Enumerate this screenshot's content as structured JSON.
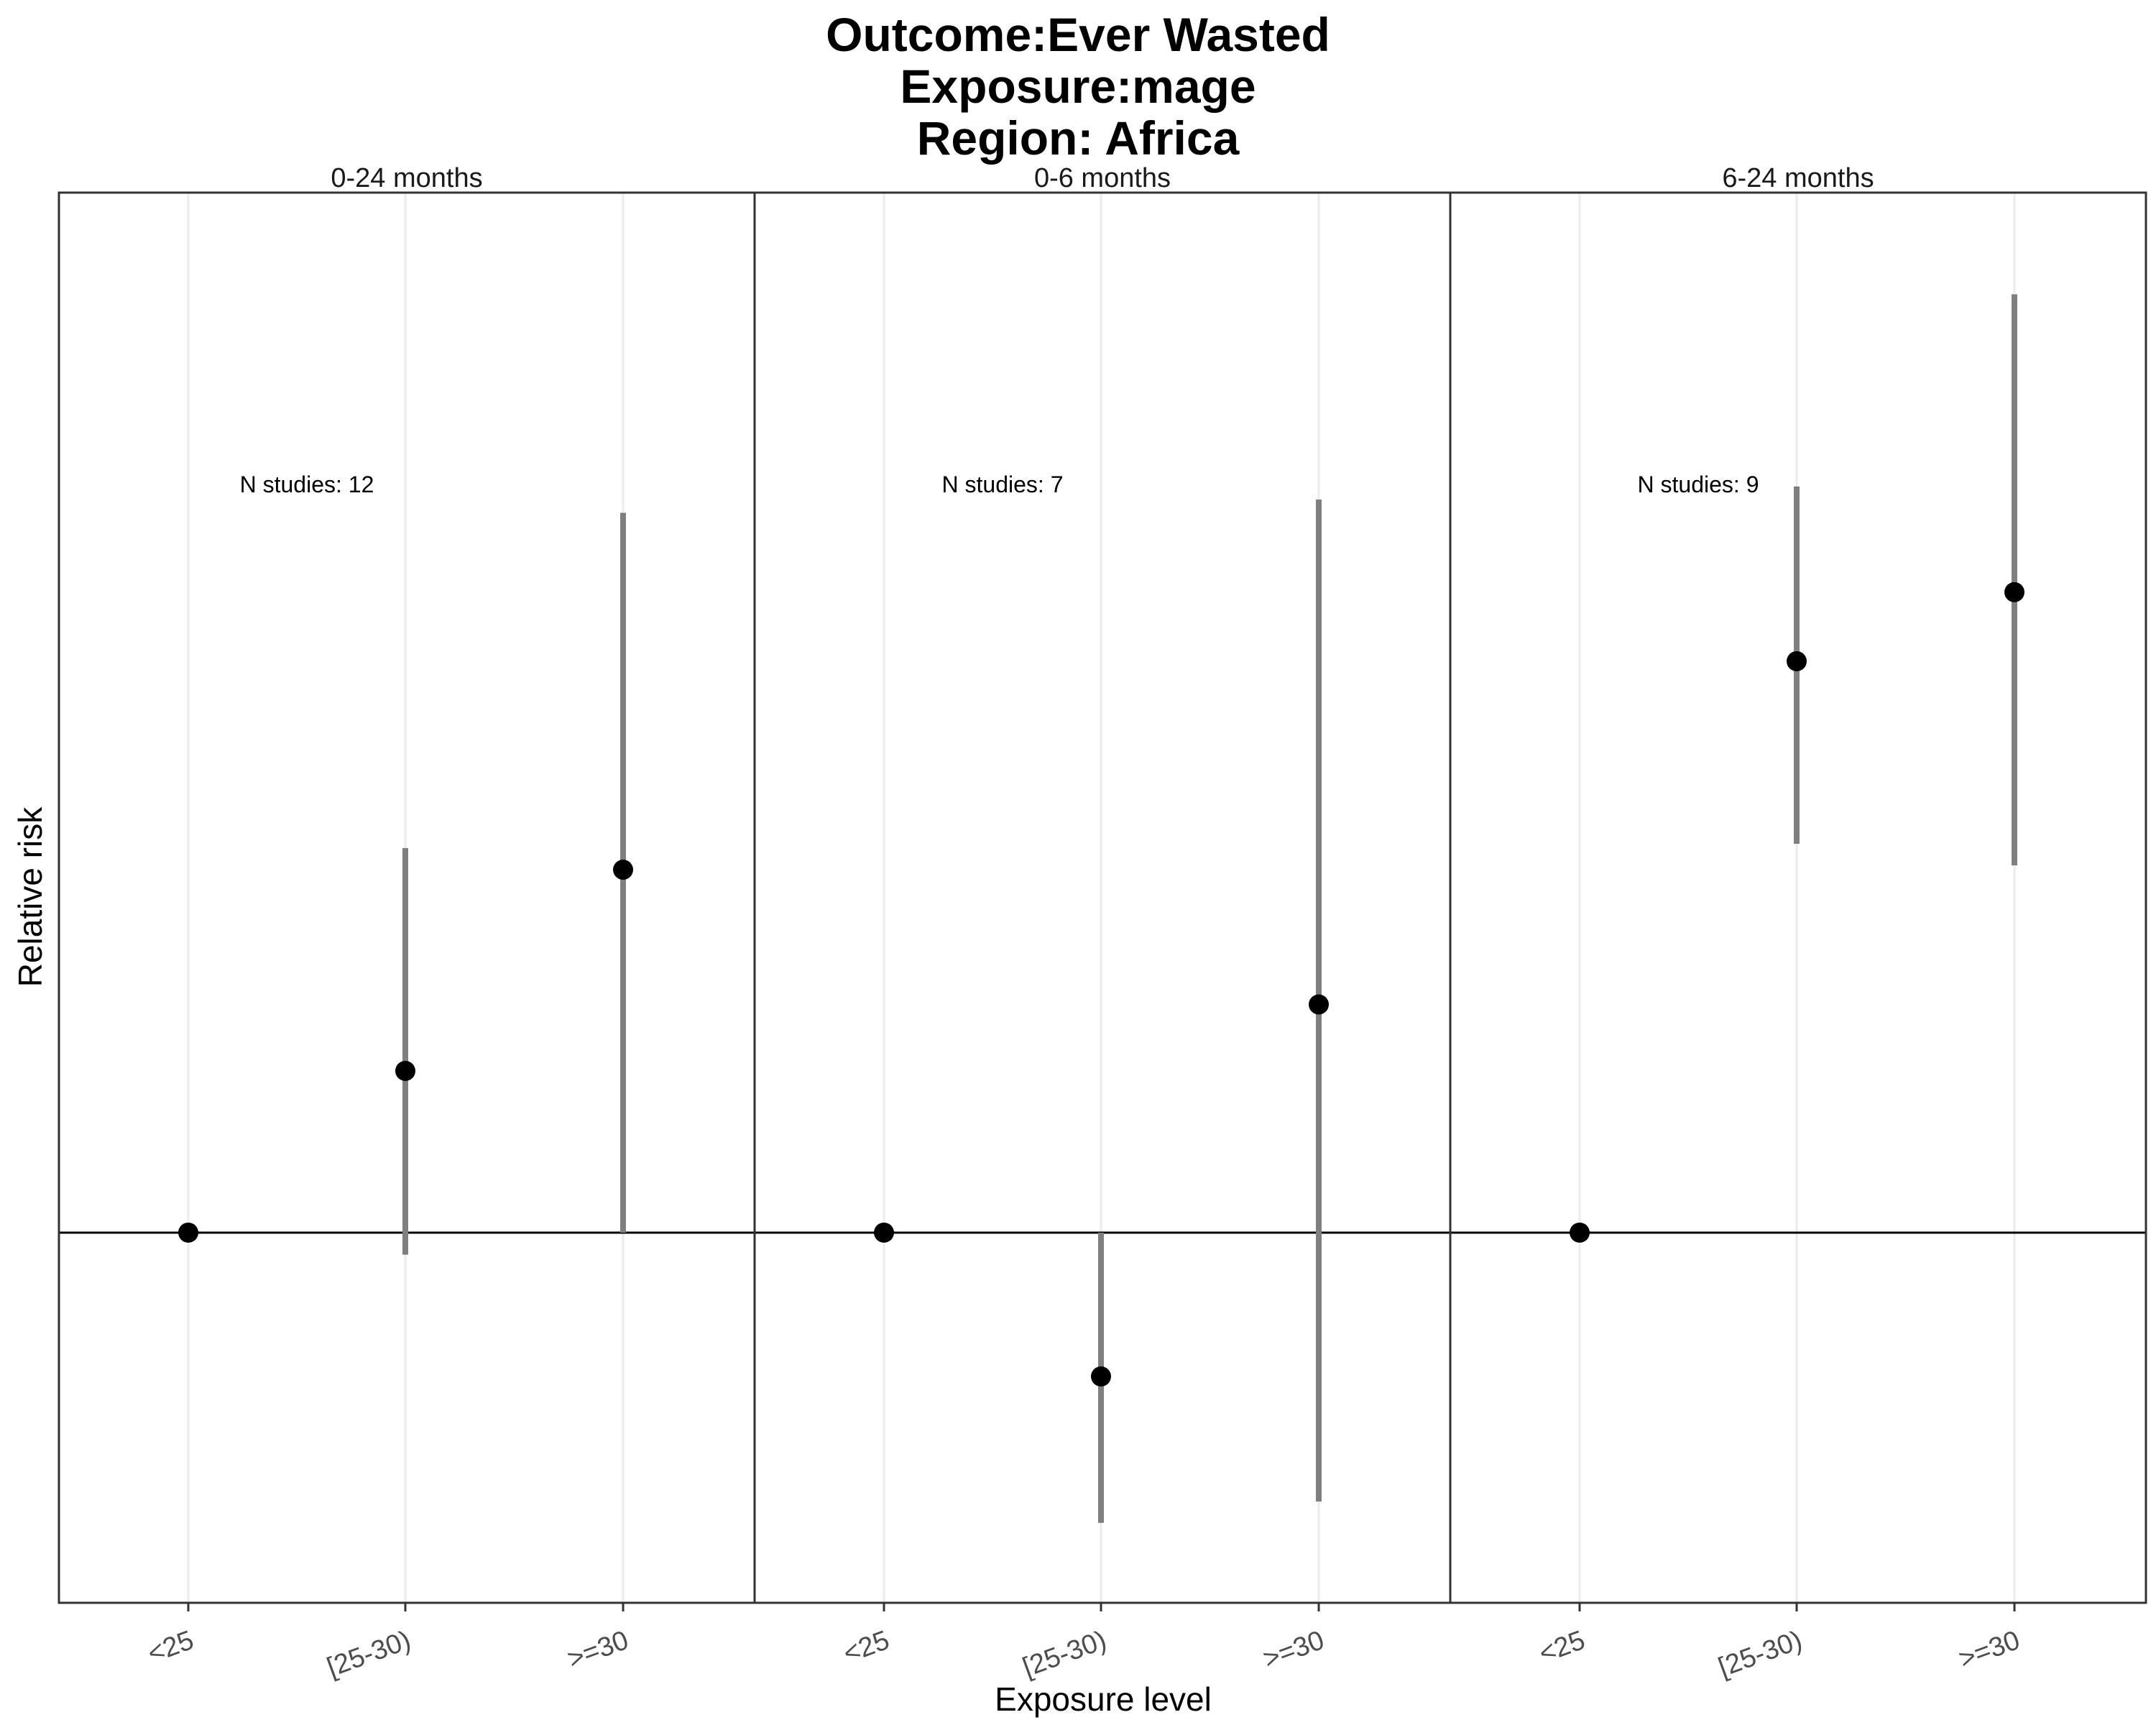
{
  "title_lines": [
    "Outcome:Ever Wasted",
    "Exposure:mage",
    "Region: Africa"
  ],
  "chart_data": {
    "type": "scatter",
    "subtype": "point-range",
    "xlabel": "Exposure level",
    "ylabel": "Relative risk",
    "y_scale": "log",
    "y_ticks_shown": false,
    "reference_line": 1,
    "grid": "vertical",
    "categories": [
      "<25",
      "[25-30)",
      ">=30"
    ],
    "ylim": [
      0.6,
      4.2
    ],
    "colors": {
      "point": "#000000",
      "ci": "#7f7f7f",
      "grid": "#ebebeb",
      "border": "#333333"
    },
    "panels": [
      {
        "label": "0-24 months",
        "annotation": "N studies: 12",
        "points": [
          {
            "x": "<25",
            "rr": 1.0,
            "lower": 1.0,
            "upper": 1.0
          },
          {
            "x": "[25-30)",
            "rr": 1.25,
            "lower": 0.97,
            "upper": 1.7
          },
          {
            "x": ">=30",
            "rr": 1.65,
            "lower": 1.0,
            "upper": 2.7
          }
        ]
      },
      {
        "label": "0-6 months",
        "annotation": "N studies: 7",
        "points": [
          {
            "x": "<25",
            "rr": 1.0,
            "lower": 1.0,
            "upper": 1.0
          },
          {
            "x": "[25-30)",
            "rr": 0.82,
            "lower": 0.67,
            "upper": 1.0
          },
          {
            "x": ">=30",
            "rr": 1.37,
            "lower": 0.69,
            "upper": 2.75
          }
        ]
      },
      {
        "label": "6-24 months",
        "annotation": "N studies: 9",
        "points": [
          {
            "x": "<25",
            "rr": 1.0,
            "lower": 1.0,
            "upper": 1.0
          },
          {
            "x": "[25-30)",
            "rr": 2.2,
            "lower": 1.71,
            "upper": 2.8
          },
          {
            "x": ">=30",
            "rr": 2.42,
            "lower": 1.66,
            "upper": 3.65
          }
        ]
      }
    ]
  }
}
